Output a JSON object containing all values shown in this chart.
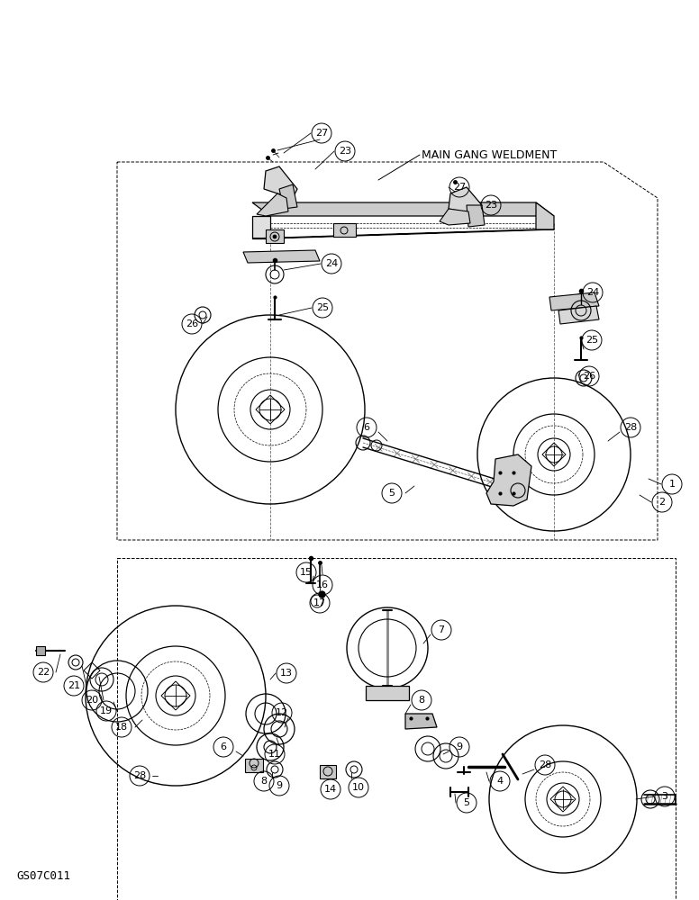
{
  "background_color": "#ffffff",
  "image_code": "GS07C011",
  "main_label": "MAIN GANG WELDMENT",
  "fig_width": 7.76,
  "fig_height": 10.0,
  "dpi": 100,
  "line_color": "#000000",
  "light_gray": "#cccccc",
  "mid_gray": "#999999"
}
